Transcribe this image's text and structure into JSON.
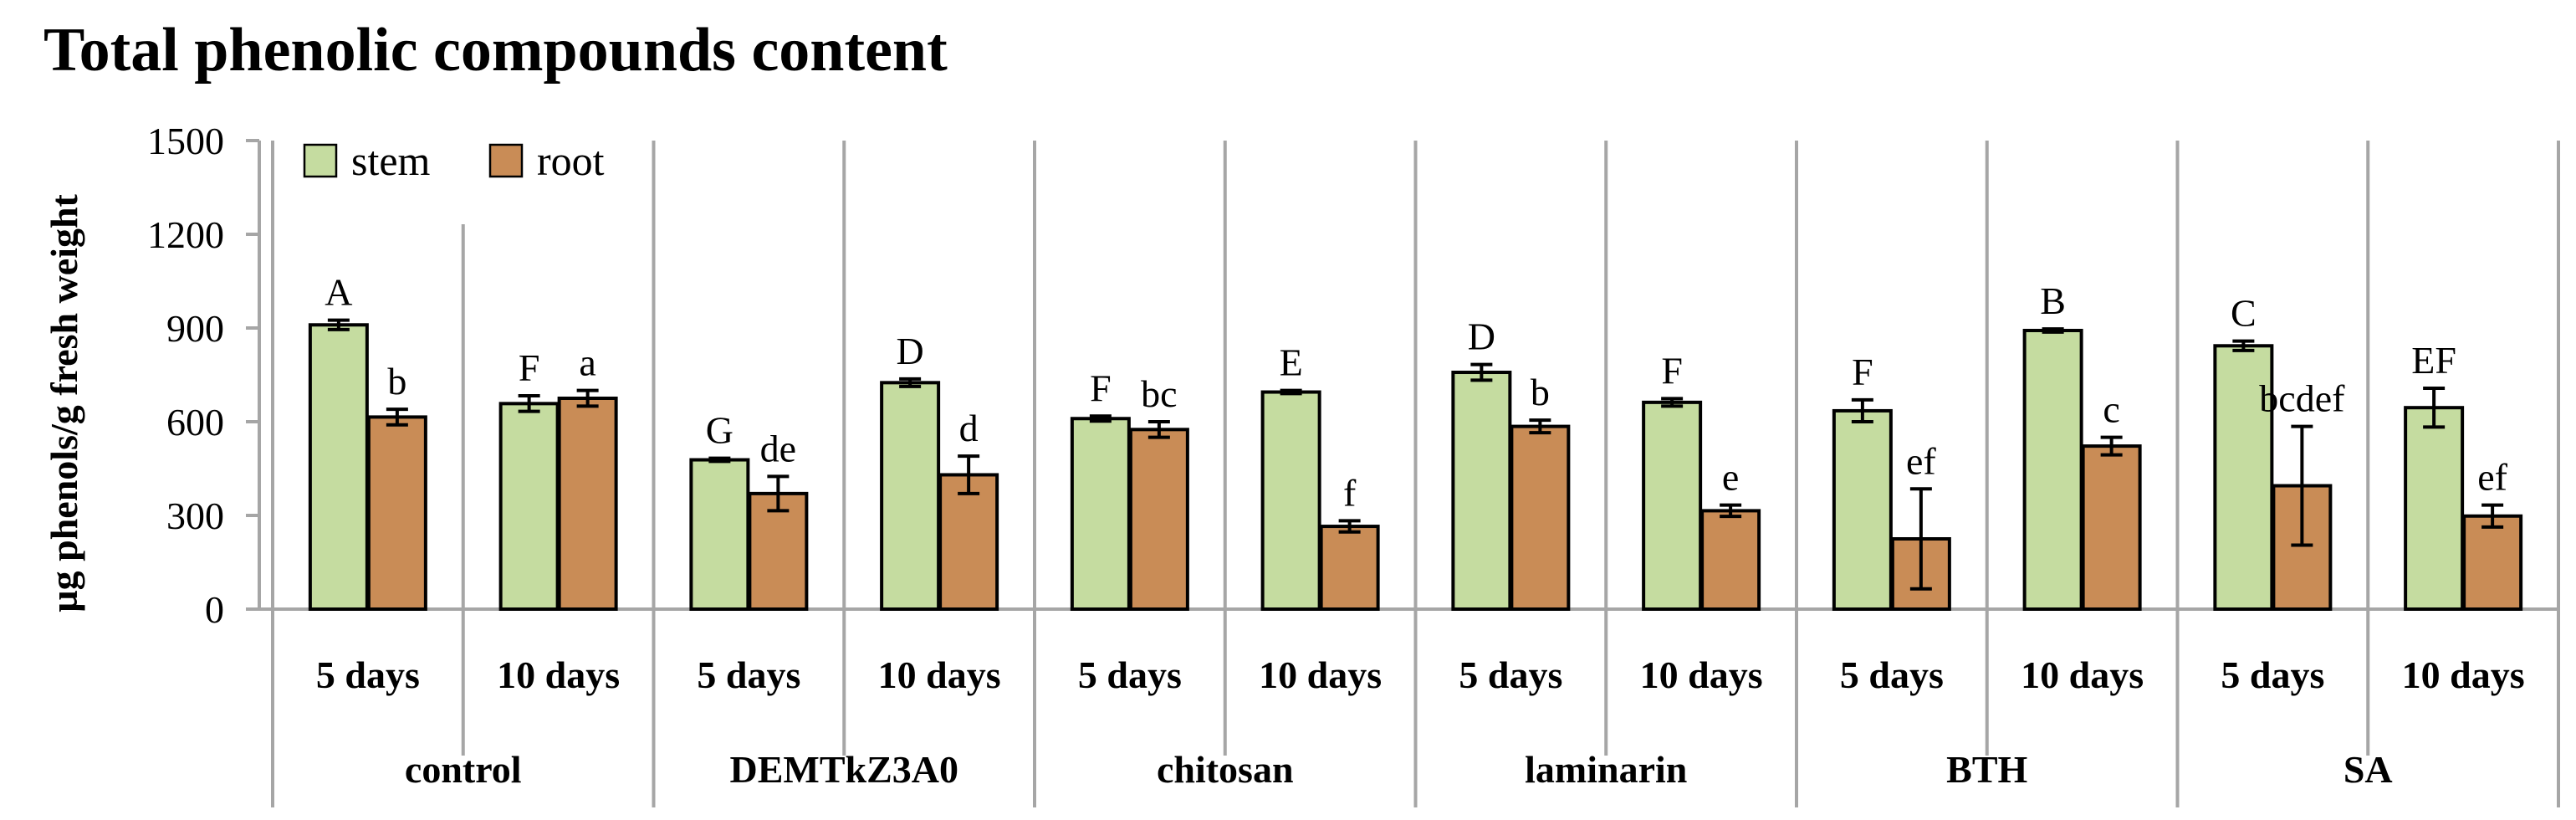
{
  "chart_data": {
    "type": "bar",
    "title": "Total phenolic compounds content",
    "ylabel": "µg phenols/g fresh weight",
    "xlabel": "",
    "ylim": [
      0,
      1500
    ],
    "yticks": [
      "0",
      "300",
      "600",
      "900",
      "1200",
      "1500"
    ],
    "grid": false,
    "legend_position": "top-left",
    "colors": {
      "stem": "#c5dca0",
      "root": "#c98c56",
      "axis": "#a6a6a6"
    },
    "series": [
      {
        "name": "stem",
        "color": "#c5dca0"
      },
      {
        "name": "root",
        "color": "#c98c56"
      }
    ],
    "treatments": [
      "control",
      "DEMTkZ3A0",
      "chitosan",
      "laminarin",
      "BTH",
      "SA"
    ],
    "categories": [
      {
        "treatment": "control",
        "time": "5 days",
        "stem": 910,
        "stem_err": 15,
        "stem_label": "A",
        "root": 615,
        "root_err": 25,
        "root_label": "b"
      },
      {
        "treatment": "control",
        "time": "10 days",
        "stem": 658,
        "stem_err": 25,
        "stem_label": "F",
        "root": 675,
        "root_err": 25,
        "root_label": "a"
      },
      {
        "treatment": "DEMTkZ3A0",
        "time": "5 days",
        "stem": 478,
        "stem_err": 5,
        "stem_label": "G",
        "root": 370,
        "root_err": 55,
        "root_label": "de"
      },
      {
        "treatment": "DEMTkZ3A0",
        "time": "10 days",
        "stem": 725,
        "stem_err": 12,
        "stem_label": "D",
        "root": 430,
        "root_err": 60,
        "root_label": "d"
      },
      {
        "treatment": "chitosan",
        "time": "5 days",
        "stem": 610,
        "stem_err": 8,
        "stem_label": "F",
        "root": 575,
        "root_err": 25,
        "root_label": "bc"
      },
      {
        "treatment": "chitosan",
        "time": "10 days",
        "stem": 695,
        "stem_err": 5,
        "stem_label": "E",
        "root": 265,
        "root_err": 18,
        "root_label": "f"
      },
      {
        "treatment": "laminarin",
        "time": "5 days",
        "stem": 758,
        "stem_err": 25,
        "stem_label": "D",
        "root": 585,
        "root_err": 20,
        "root_label": "b"
      },
      {
        "treatment": "laminarin",
        "time": "10 days",
        "stem": 662,
        "stem_err": 12,
        "stem_label": "F",
        "root": 315,
        "root_err": 18,
        "root_label": "e"
      },
      {
        "treatment": "BTH",
        "time": "5 days",
        "stem": 635,
        "stem_err": 35,
        "stem_label": "F",
        "root": 225,
        "root_err": 160,
        "root_label": "ef"
      },
      {
        "treatment": "BTH",
        "time": "10 days",
        "stem": 892,
        "stem_err": 5,
        "stem_label": "B",
        "root": 522,
        "root_err": 28,
        "root_label": "c"
      },
      {
        "treatment": "SA",
        "time": "5 days",
        "stem": 843,
        "stem_err": 15,
        "stem_label": "C",
        "root": 395,
        "root_err": 190,
        "root_label": "bcdef"
      },
      {
        "treatment": "SA",
        "time": "10 days",
        "stem": 645,
        "stem_err": 62,
        "stem_label": "EF",
        "root": 298,
        "root_err": 35,
        "root_label": "ef"
      }
    ]
  }
}
